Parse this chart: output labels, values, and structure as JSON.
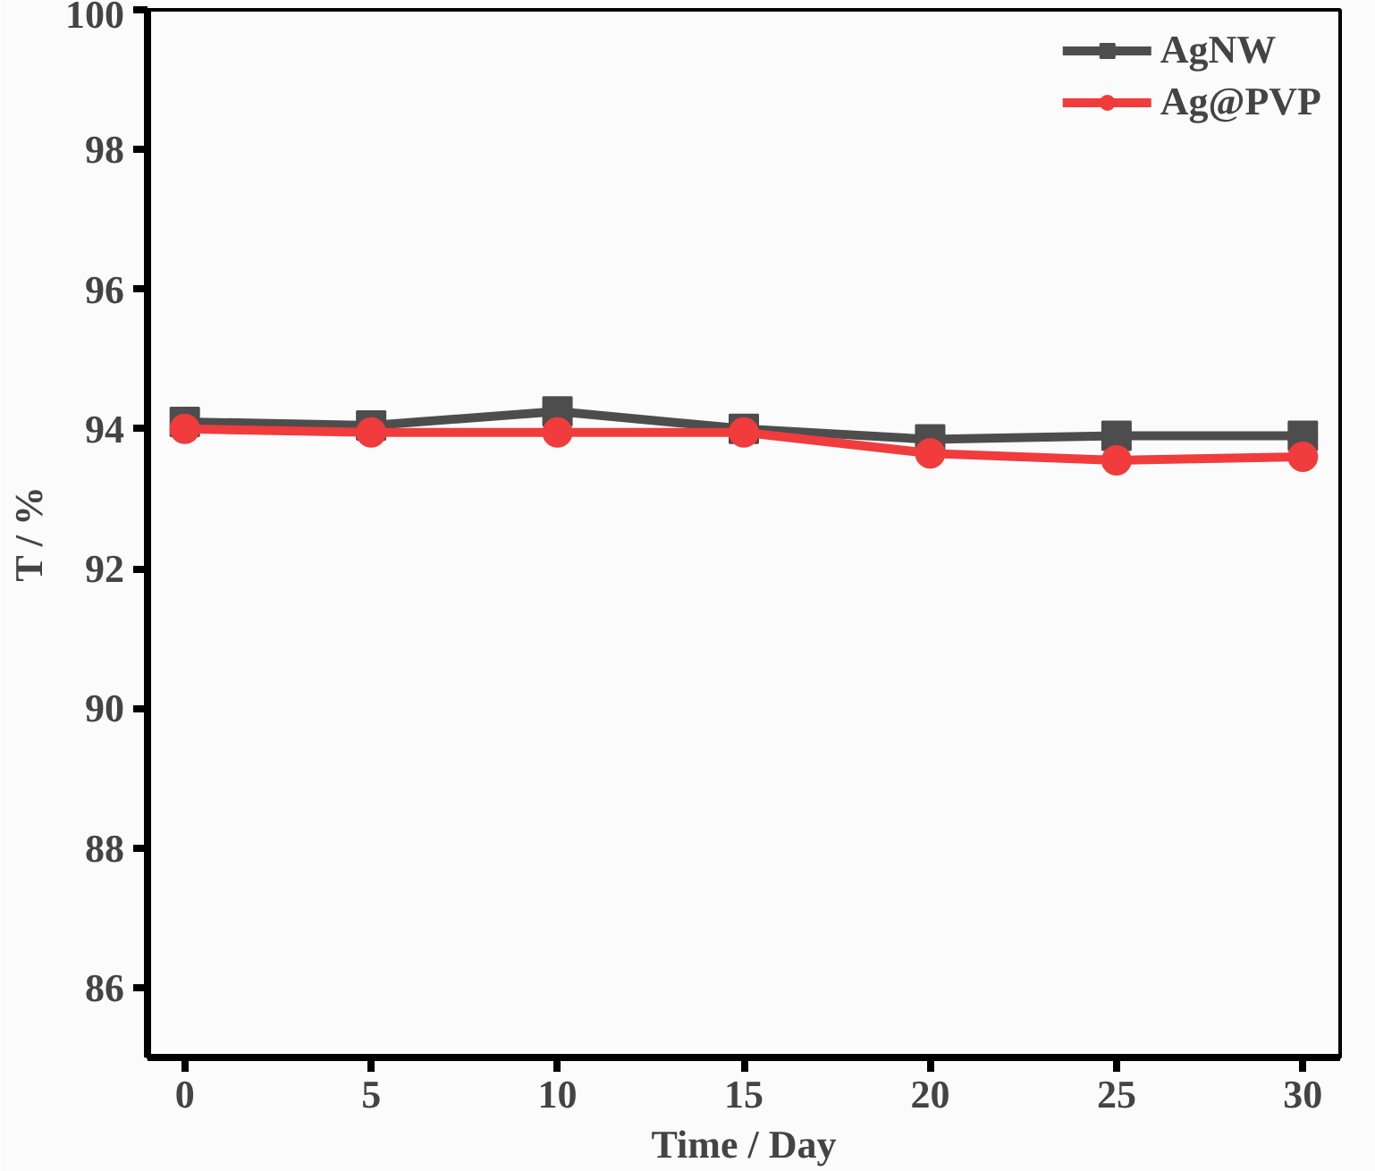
{
  "chart_data": {
    "type": "line",
    "xlabel": "Time / Day",
    "ylabel": "T / %",
    "x": [
      0,
      5,
      10,
      15,
      20,
      25,
      30
    ],
    "series": [
      {
        "name": "AgNW",
        "color": "#4d4d4d",
        "marker": "square",
        "values": [
          94.1,
          94.05,
          94.25,
          94.0,
          93.85,
          93.9,
          93.9
        ]
      },
      {
        "name": "Ag@PVP",
        "color": "#f03c3c",
        "marker": "circle",
        "values": [
          94.0,
          93.95,
          93.95,
          93.95,
          93.65,
          93.55,
          93.6
        ]
      }
    ],
    "xlim": [
      -1,
      31
    ],
    "ylim": [
      85,
      100
    ],
    "xticks": [
      0,
      5,
      10,
      15,
      20,
      25,
      30
    ],
    "yticks": [
      86,
      88,
      90,
      92,
      94,
      96,
      98,
      100
    ],
    "grid": false,
    "legend": "top right",
    "line_style": "solid"
  }
}
